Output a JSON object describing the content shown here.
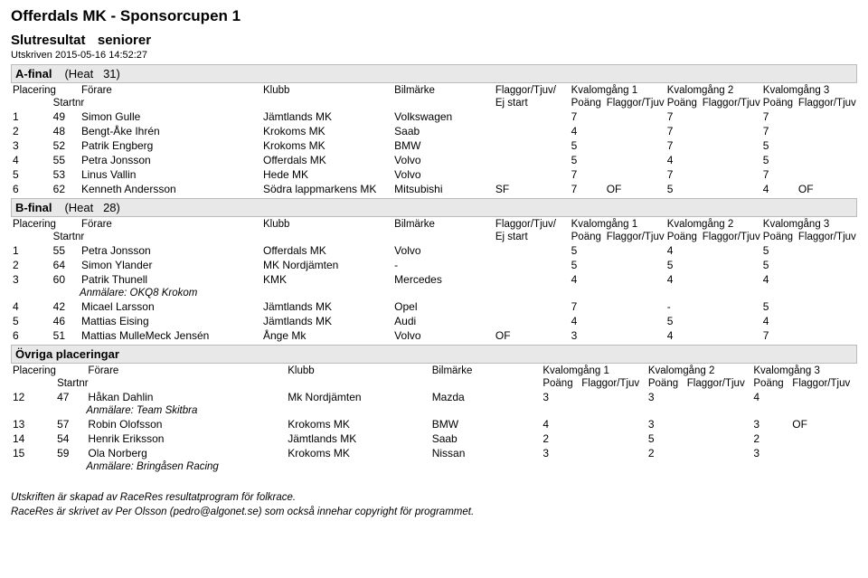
{
  "title": "Offerdals MK - Sponsorcupen 1",
  "subtitle_left": "Slutresultat",
  "subtitle_right": "seniorer",
  "printed": "Utskriven 2015-05-16 14:52:27",
  "header_labels": {
    "placering": "Placering",
    "forare": "Förare",
    "startnr": "Startnr",
    "klubb": "Klubb",
    "bilmarke": "Bilmärke",
    "flaggor": "Flaggor/Tjuv/",
    "ej_start": "Ej start",
    "kv1": "Kvalomgång 1",
    "kv2": "Kvalomgång 2",
    "kv3": "Kvalomgång 3",
    "poang": "Poäng",
    "flaggor_tjuv": "Flaggor/Tjuv"
  },
  "sections": [
    {
      "label": "A-final",
      "heat_label": "(Heat",
      "heat_no": "31)",
      "show_flag_col": true,
      "rows": [
        {
          "pl": "1",
          "nr": "49",
          "name": "Simon Gulle",
          "club": "Jämtlands MK",
          "make": "Volkswagen",
          "flag": "",
          "p1": "7",
          "f1": "",
          "p2": "7",
          "f2": "",
          "p3": "7",
          "f3": ""
        },
        {
          "pl": "2",
          "nr": "48",
          "name": "Bengt-Åke Ihrén",
          "club": "Krokoms MK",
          "make": "Saab",
          "flag": "",
          "p1": "4",
          "f1": "",
          "p2": "7",
          "f2": "",
          "p3": "7",
          "f3": ""
        },
        {
          "pl": "3",
          "nr": "52",
          "name": "Patrik Engberg",
          "club": "Krokoms MK",
          "make": "BMW",
          "flag": "",
          "p1": "5",
          "f1": "",
          "p2": "7",
          "f2": "",
          "p3": "5",
          "f3": ""
        },
        {
          "pl": "4",
          "nr": "55",
          "name": "Petra Jonsson",
          "club": "Offerdals MK",
          "make": "Volvo",
          "flag": "",
          "p1": "5",
          "f1": "",
          "p2": "4",
          "f2": "",
          "p3": "5",
          "f3": ""
        },
        {
          "pl": "5",
          "nr": "53",
          "name": "Linus Vallin",
          "club": "Hede MK",
          "make": "Volvo",
          "flag": "",
          "p1": "7",
          "f1": "",
          "p2": "7",
          "f2": "",
          "p3": "7",
          "f3": ""
        },
        {
          "pl": "6",
          "nr": "62",
          "name": "Kenneth Andersson",
          "club": "Södra lappmarkens MK",
          "make": "Mitsubishi",
          "flag": "SF",
          "p1": "7",
          "f1": "OF",
          "p2": "5",
          "f2": "",
          "p3": "4",
          "f3": "OF"
        }
      ]
    },
    {
      "label": "B-final",
      "heat_label": "(Heat",
      "heat_no": "28)",
      "show_flag_col": true,
      "rows": [
        {
          "pl": "1",
          "nr": "55",
          "name": "Petra Jonsson",
          "club": "Offerdals MK",
          "make": "Volvo",
          "flag": "",
          "p1": "5",
          "f1": "",
          "p2": "4",
          "f2": "",
          "p3": "5",
          "f3": ""
        },
        {
          "pl": "2",
          "nr": "64",
          "name": "Simon Ylander",
          "club": "MK Nordjämten",
          "make": "-",
          "flag": "",
          "p1": "5",
          "f1": "",
          "p2": "5",
          "f2": "",
          "p3": "5",
          "f3": ""
        },
        {
          "pl": "3",
          "nr": "60",
          "name": "Patrik Thunell",
          "club": "KMK",
          "make": "Mercedes",
          "flag": "",
          "p1": "4",
          "f1": "",
          "p2": "4",
          "f2": "",
          "p3": "4",
          "f3": "",
          "note": "Anmälare: OKQ8 Krokom"
        },
        {
          "pl": "4",
          "nr": "42",
          "name": "Micael Larsson",
          "club": "Jämtlands MK",
          "make": "Opel",
          "flag": "",
          "p1": "7",
          "f1": "",
          "p2": "-",
          "f2": "",
          "p3": "5",
          "f3": ""
        },
        {
          "pl": "5",
          "nr": "46",
          "name": "Mattias Eising",
          "club": "Jämtlands MK",
          "make": "Audi",
          "flag": "",
          "p1": "4",
          "f1": "",
          "p2": "5",
          "f2": "",
          "p3": "4",
          "f3": ""
        },
        {
          "pl": "6",
          "nr": "51",
          "name": "Mattias MulleMeck Jensén",
          "club": "Ånge Mk",
          "make": "Volvo",
          "flag": "OF",
          "p1": "3",
          "f1": "",
          "p2": "4",
          "f2": "",
          "p3": "7",
          "f3": ""
        }
      ]
    },
    {
      "label": "Övriga placeringar",
      "heat_label": "",
      "heat_no": "",
      "show_flag_col": false,
      "rows": [
        {
          "pl": "12",
          "nr": "47",
          "name": "Håkan Dahlin",
          "club": "Mk Nordjämten",
          "make": "Mazda",
          "flag": "",
          "p1": "3",
          "f1": "",
          "p2": "3",
          "f2": "",
          "p3": "4",
          "f3": "",
          "note": "Anmälare: Team Skitbra"
        },
        {
          "pl": "13",
          "nr": "57",
          "name": "Robin Olofsson",
          "club": "Krokoms MK",
          "make": "BMW",
          "flag": "",
          "p1": "4",
          "f1": "",
          "p2": "3",
          "f2": "",
          "p3": "3",
          "f3": "OF"
        },
        {
          "pl": "14",
          "nr": "54",
          "name": "Henrik Eriksson",
          "club": "Jämtlands MK",
          "make": "Saab",
          "flag": "",
          "p1": "2",
          "f1": "",
          "p2": "5",
          "f2": "",
          "p3": "2",
          "f3": ""
        },
        {
          "pl": "15",
          "nr": "59",
          "name": "Ola Norberg",
          "club": "Krokoms MK",
          "make": "Nissan",
          "flag": "",
          "p1": "3",
          "f1": "",
          "p2": "2",
          "f2": "",
          "p3": "3",
          "f3": "",
          "note": "Anmälare: Bringåsen Racing"
        }
      ]
    }
  ],
  "footer_line1": "Utskriften är skapad av RaceRes resultatprogram för folkrace.",
  "footer_line2": "RaceRes är skrivet av Per Olsson (pedro@algonet.se) som också innehar copyright för programmet."
}
